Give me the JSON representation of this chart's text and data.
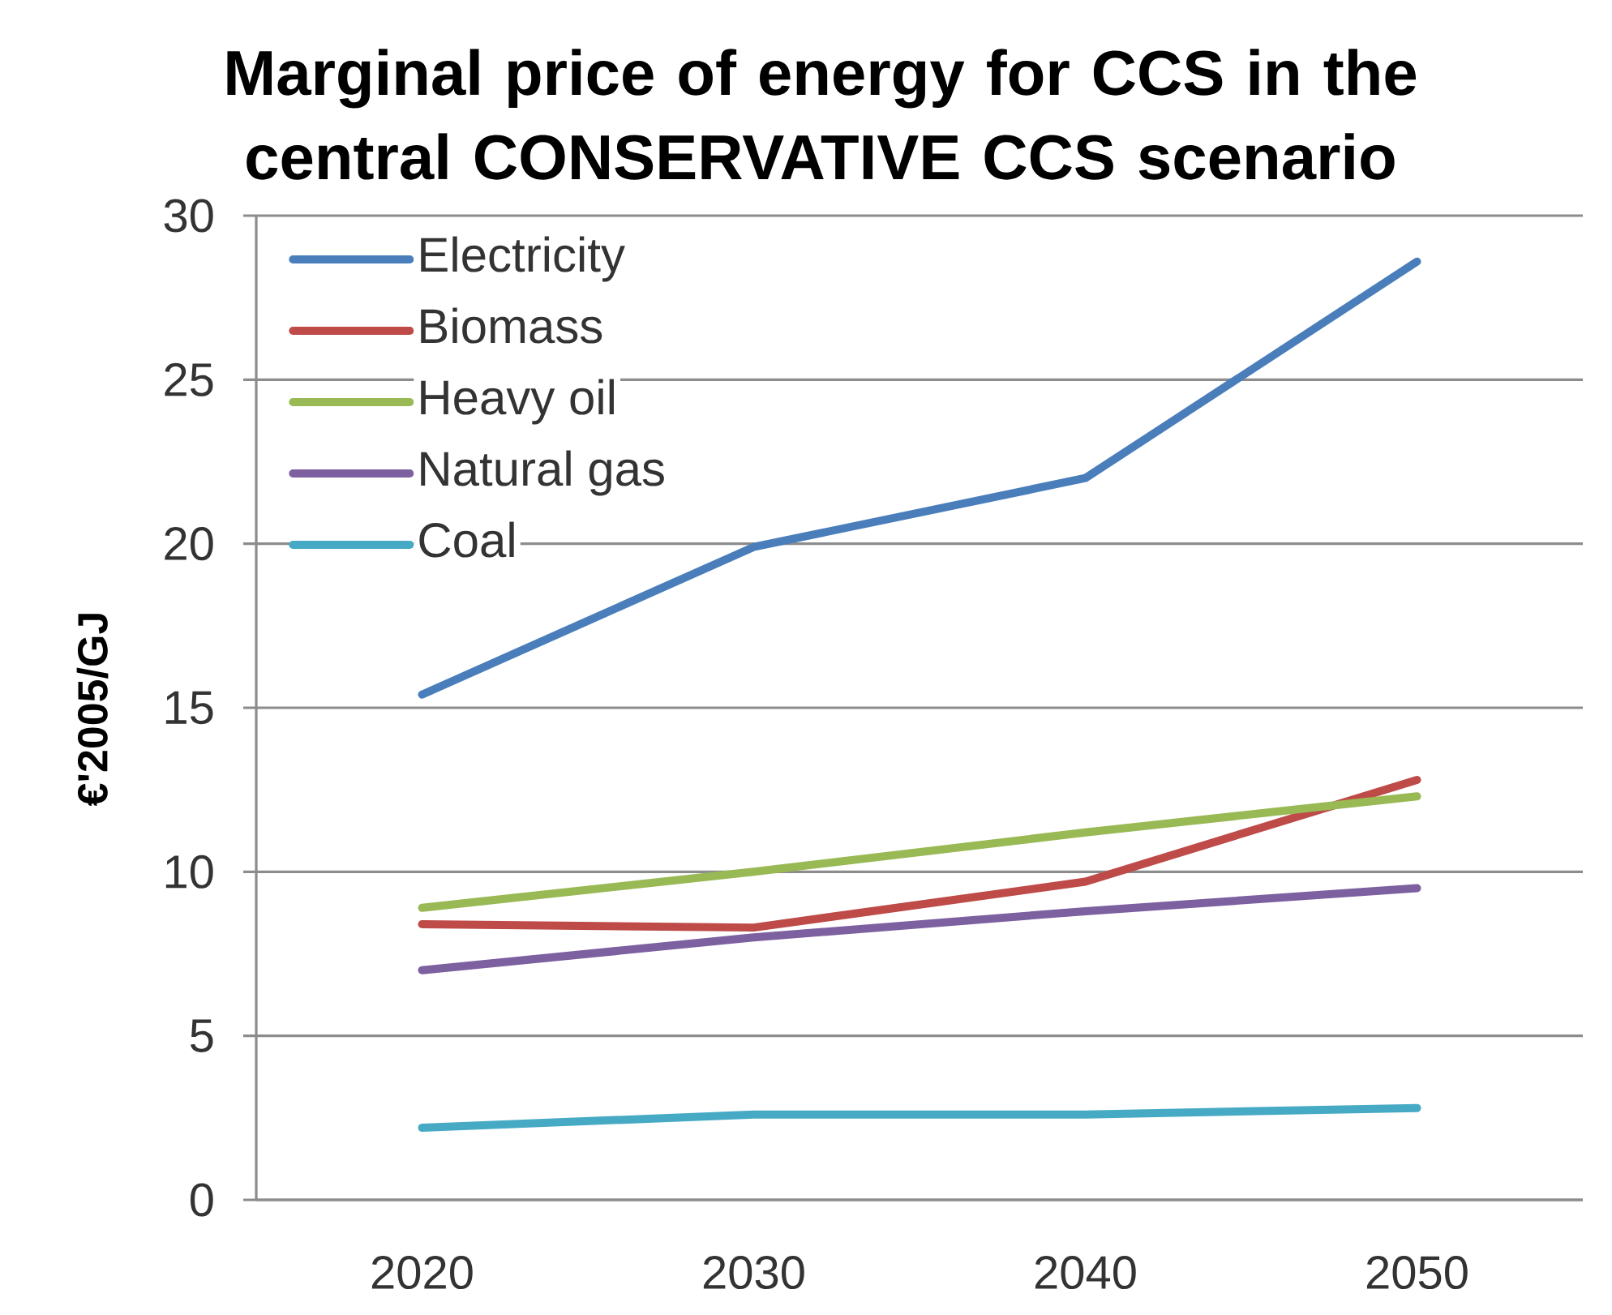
{
  "chart_data": {
    "type": "line",
    "title": "Marginal price of energy for CCS in the central CONSERVATIVE CCS scenario",
    "ylabel": "€'2005/GJ",
    "categories": [
      "2020",
      "2030",
      "2040",
      "2050"
    ],
    "series": [
      {
        "name": "Electricity",
        "color": "#4a7ebb",
        "values": [
          15.4,
          19.9,
          22.0,
          28.6
        ]
      },
      {
        "name": "Biomass",
        "color": "#be4b48",
        "values": [
          8.4,
          8.3,
          9.7,
          12.8
        ]
      },
      {
        "name": "Heavy oil",
        "color": "#98b954",
        "values": [
          8.9,
          10.0,
          11.2,
          12.3
        ]
      },
      {
        "name": "Natural gas",
        "color": "#7d60a0",
        "values": [
          7.0,
          8.0,
          8.8,
          9.5
        ]
      },
      {
        "name": "Coal",
        "color": "#46aac5",
        "values": [
          2.2,
          2.6,
          2.6,
          2.8
        ]
      }
    ],
    "ylim": [
      0,
      30
    ],
    "yticks": [
      0,
      5,
      10,
      15,
      20,
      25,
      30
    ],
    "grid": "y",
    "legend": "top left",
    "marker": "none",
    "line_style": "solid"
  }
}
